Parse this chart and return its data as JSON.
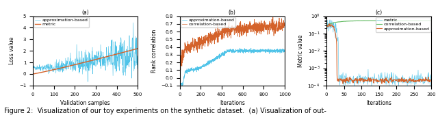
{
  "fig_width": 6.4,
  "fig_height": 1.81,
  "dpi": 100,
  "background_color": "#ffffff",
  "caption": "Figure 2:  Visualization of our toy experiments on the synthetic dataset.  (a) Visualization of out-",
  "panel_a": {
    "xlabel": "Validation samples",
    "ylabel": "Loss value",
    "label_a": "(a)",
    "xlim": [
      0,
      500
    ],
    "ylim": [
      -1,
      5
    ],
    "xticks": [
      0,
      50,
      100,
      150,
      200,
      250,
      300,
      350,
      400,
      450,
      500
    ],
    "yticks": [
      -1,
      0,
      1,
      2,
      3,
      4,
      5
    ],
    "legend": [
      "approximation-based",
      "metric"
    ],
    "line_colors": [
      "#4fc3e8",
      "#d4622a"
    ]
  },
  "panel_b": {
    "xlabel": "Iterations",
    "ylabel": "Rank correlation",
    "label_b": "(b)",
    "xlim": [
      0,
      1000
    ],
    "ylim": [
      -0.1,
      0.8
    ],
    "xticks": [
      0,
      200,
      400,
      600,
      800,
      1000
    ],
    "yticks": [
      -0.1,
      0.0,
      0.1,
      0.2,
      0.3,
      0.4,
      0.5,
      0.6,
      0.7,
      0.8
    ],
    "legend": [
      "approximation-based",
      "correlation-based"
    ],
    "line_colors": [
      "#4fc3e8",
      "#d4622a"
    ]
  },
  "panel_c": {
    "xlabel": "Iterations",
    "ylabel": "Metric value",
    "label_c": "(c)",
    "xlim": [
      0,
      300
    ],
    "ylim": [
      0.0001,
      1.0
    ],
    "xticks": [
      0,
      50,
      100,
      150,
      200,
      250,
      300
    ],
    "legend": [
      "metric",
      "correlation-based",
      "approximation-based"
    ],
    "line_colors": [
      "#4fc3e8",
      "#5cb85c",
      "#d4622a"
    ]
  },
  "font_size": 5.5,
  "tick_fontsize": 5.0,
  "caption_fontsize": 7.0
}
